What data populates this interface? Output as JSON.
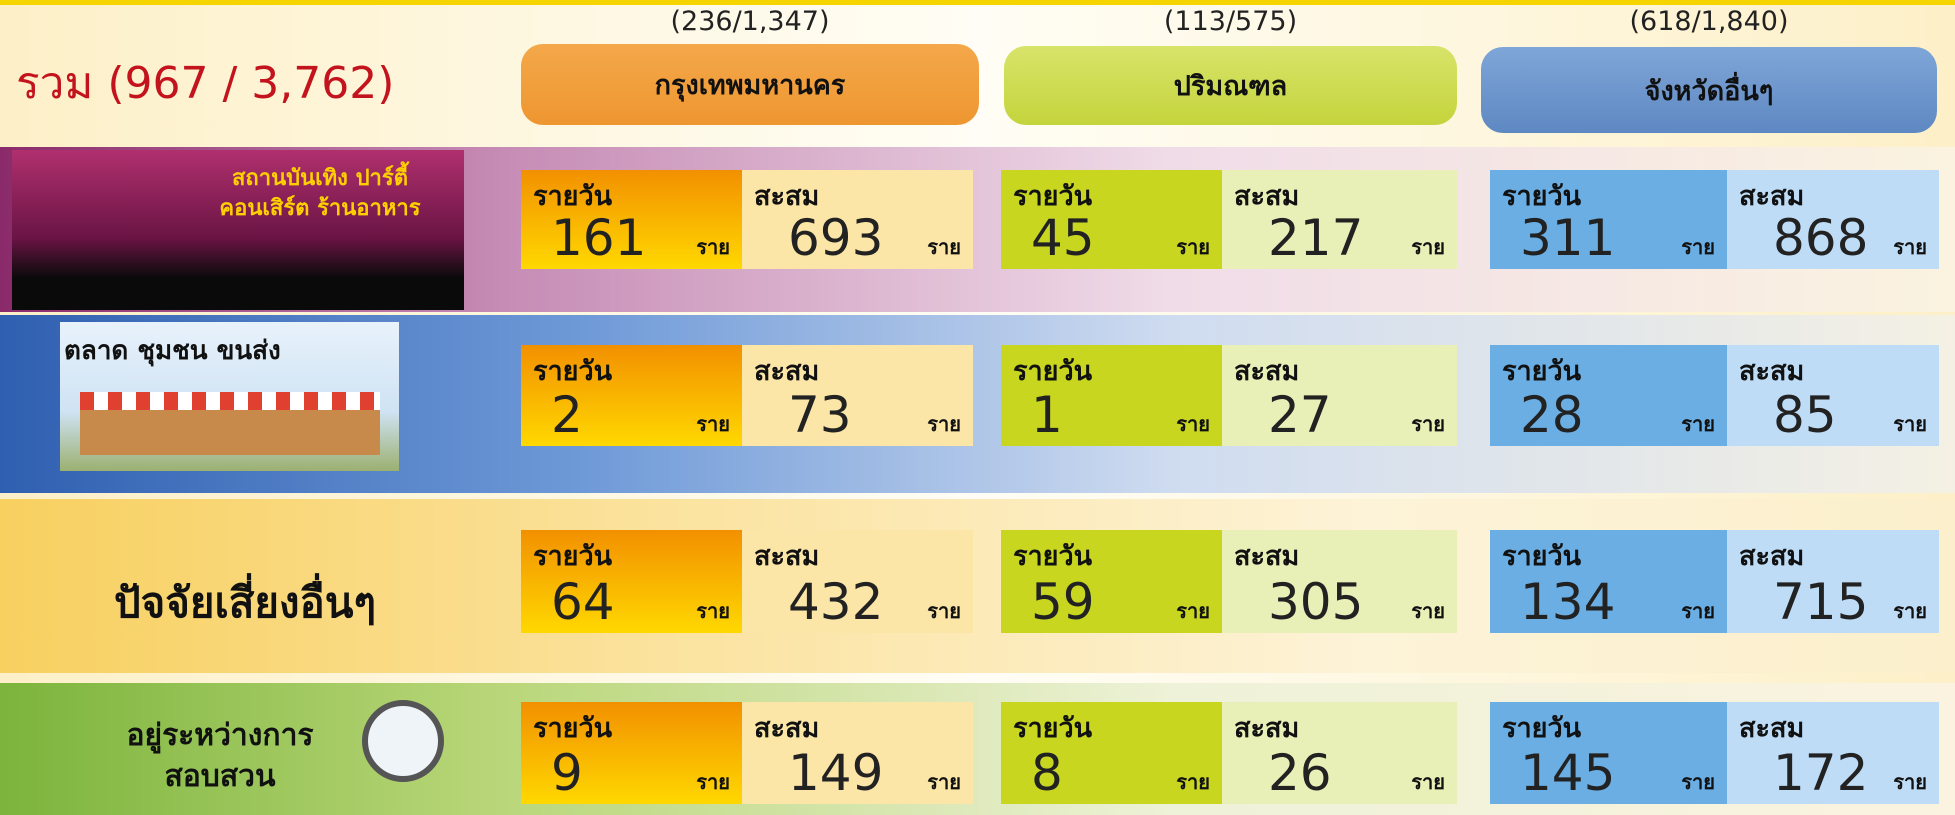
{
  "header": {
    "title": "รวม (967 / 3,762)"
  },
  "regions": [
    {
      "count": "(236/1,347)",
      "name": "กรุงเทพมหานคร"
    },
    {
      "count": "(113/575)",
      "name": "ปริมณฑล"
    },
    {
      "count": "(618/1,840)",
      "name": "จังหวัดอื่นๆ"
    }
  ],
  "labels": {
    "daily": "รายวัน",
    "cumulative": "สะสม",
    "unit": "ราย"
  },
  "rows": [
    {
      "label": [
        "สถานบันเทิง ปาร์ตี้",
        "คอนเสิร์ต ร้านอาหาร"
      ],
      "cells": [
        [
          161,
          693
        ],
        [
          45,
          217
        ],
        [
          311,
          868
        ]
      ]
    },
    {
      "label": [
        "ตลาด ชุมชน ขนส่ง"
      ],
      "cells": [
        [
          2,
          73
        ],
        [
          1,
          27
        ],
        [
          28,
          85
        ]
      ]
    },
    {
      "label": [
        "ปัจจัยเสี่ยงอื่นๆ"
      ],
      "cells": [
        [
          64,
          432
        ],
        [
          59,
          305
        ],
        [
          134,
          715
        ]
      ]
    },
    {
      "label": [
        "อยู่ระหว่างการ",
        "สอบสวน"
      ],
      "cells": [
        [
          9,
          149
        ],
        [
          8,
          26
        ],
        [
          145,
          172
        ]
      ]
    }
  ]
}
